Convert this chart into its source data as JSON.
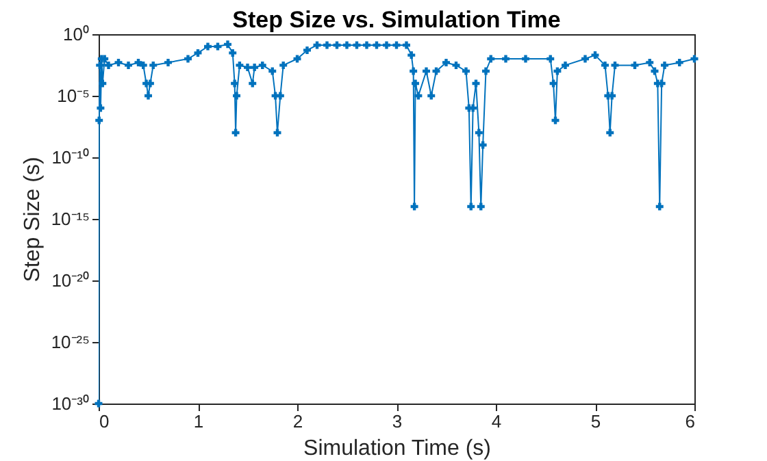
{
  "chart_data": {
    "type": "line",
    "title": "Step Size vs. Simulation Time",
    "xlabel": "Simulation Time (s)",
    "ylabel": "Step Size (s)",
    "log": "y",
    "marker": "cross",
    "line_style": "solid",
    "color": "#0072bd",
    "x": [
      0,
      0.005,
      0.012,
      0.02,
      0.03,
      0.04,
      0.06,
      0.1,
      0.2,
      0.3,
      0.4,
      0.45,
      0.48,
      0.5,
      0.52,
      0.55,
      0.7,
      0.9,
      1.0,
      1.1,
      1.2,
      1.3,
      1.35,
      1.37,
      1.38,
      1.39,
      1.42,
      1.5,
      1.55,
      1.57,
      1.65,
      1.75,
      1.78,
      1.8,
      1.83,
      1.86,
      2.0,
      2.1,
      2.2,
      2.3,
      2.4,
      2.5,
      2.6,
      2.7,
      2.8,
      2.9,
      3.0,
      3.1,
      3.15,
      3.17,
      3.18,
      3.19,
      3.22,
      3.3,
      3.35,
      3.4,
      3.5,
      3.6,
      3.7,
      3.73,
      3.75,
      3.77,
      3.8,
      3.83,
      3.85,
      3.87,
      3.9,
      3.95,
      4.1,
      4.3,
      4.55,
      4.58,
      4.6,
      4.62,
      4.7,
      4.9,
      5.0,
      5.1,
      5.13,
      5.15,
      5.17,
      5.2,
      5.4,
      5.55,
      5.6,
      5.63,
      5.65,
      5.67,
      5.7,
      5.85,
      6.0
    ],
    "values": [
      1e-30,
      1e-07,
      0.003,
      1e-06,
      0.01,
      0.0001,
      0.01,
      0.003,
      0.005,
      0.003,
      0.005,
      0.003,
      0.0001,
      1e-05,
      0.0001,
      0.003,
      0.005,
      0.01,
      0.03,
      0.1,
      0.1,
      0.15,
      0.03,
      0.0001,
      1e-08,
      1e-05,
      0.003,
      0.002,
      0.0001,
      0.002,
      0.003,
      0.001,
      1e-05,
      1e-08,
      1e-05,
      0.003,
      0.01,
      0.05,
      0.13,
      0.13,
      0.13,
      0.13,
      0.13,
      0.13,
      0.13,
      0.13,
      0.13,
      0.13,
      0.02,
      0.001,
      1e-14,
      0.0001,
      1e-05,
      0.001,
      1e-05,
      0.001,
      0.005,
      0.003,
      0.001,
      1e-06,
      1e-14,
      1e-06,
      0.0001,
      1e-08,
      1e-14,
      1e-09,
      0.001,
      0.01,
      0.01,
      0.01,
      0.01,
      0.0001,
      1e-07,
      0.001,
      0.003,
      0.01,
      0.02,
      0.003,
      1e-05,
      1e-08,
      1e-05,
      0.003,
      0.003,
      0.005,
      0.001,
      0.0001,
      1e-14,
      0.0001,
      0.003,
      0.005,
      0.01
    ],
    "xlim": [
      0,
      6
    ],
    "xticks": [
      0,
      1,
      2,
      3,
      4,
      5,
      6
    ],
    "ylim": [
      1e-30,
      1
    ],
    "yticks": [
      {
        "value": 1e-30,
        "label": "10⁻³⁰"
      },
      {
        "value": 1e-25,
        "label": "10⁻²⁵"
      },
      {
        "value": 1e-20,
        "label": "10⁻²⁰"
      },
      {
        "value": 1e-15,
        "label": "10⁻¹⁵"
      },
      {
        "value": 1e-10,
        "label": "10⁻¹⁰"
      },
      {
        "value": 1e-05,
        "label": "10⁻⁵"
      },
      {
        "value": 1,
        "label": "10⁰"
      }
    ]
  }
}
